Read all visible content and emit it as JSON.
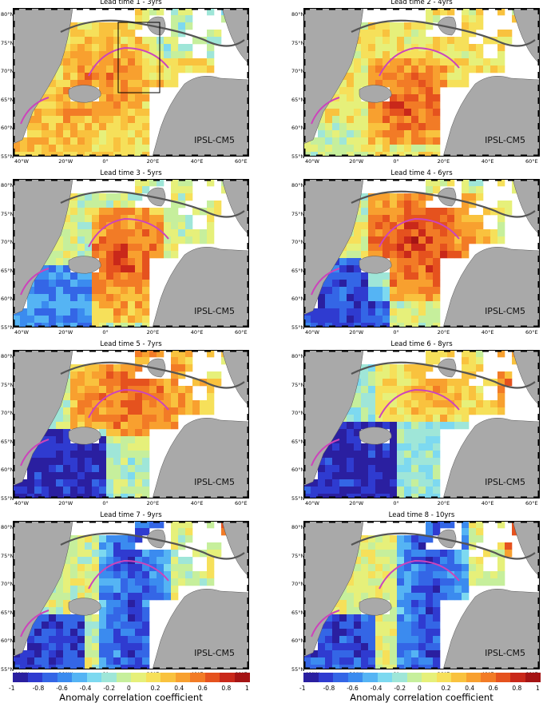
{
  "chart_data": {
    "type": "heatmap",
    "value_label": "Anomaly correlation coefficient",
    "colorbar": {
      "range": [
        -1,
        1
      ],
      "ticks": [
        "-1",
        "-0.8",
        "-0.6",
        "-0.4",
        "-0.2",
        "0",
        "0.2",
        "0.4",
        "0.6",
        "0.8",
        "1"
      ],
      "colors": [
        "#2a1fa0",
        "#2f3bd0",
        "#3466e6",
        "#3b8bef",
        "#55b4f4",
        "#7dd9f0",
        "#9fe6d8",
        "#c6ef9c",
        "#e6f07a",
        "#f6e05a",
        "#f9c23e",
        "#f8a02f",
        "#f27b26",
        "#e5521e",
        "#c9281a",
        "#a51414"
      ]
    },
    "axes": {
      "lat_ticks": [
        "55°N",
        "60°N",
        "65°N",
        "70°N",
        "75°N",
        "80°N"
      ],
      "lon_ticks": [
        "40°W",
        "20°W",
        "0°",
        "20°E",
        "40°E",
        "60°E"
      ],
      "lat_range": [
        55,
        80
      ],
      "lon_range": [
        -40,
        60
      ]
    },
    "panels": [
      {
        "title": "Lead time 1 - 3yrs",
        "model": "IPSL-CM5",
        "pattern": "lead1"
      },
      {
        "title": "Lead time 2 - 4yrs",
        "model": "IPSL-CM5",
        "pattern": "lead2"
      },
      {
        "title": "Lead time 3 - 5yrs",
        "model": "IPSL-CM5",
        "pattern": "lead3"
      },
      {
        "title": "Lead time 4 - 6yrs",
        "model": "IPSL-CM5",
        "pattern": "lead4"
      },
      {
        "title": "Lead time 5 - 7yrs",
        "model": "IPSL-CM5",
        "pattern": "lead5"
      },
      {
        "title": "Lead time 6 - 8yrs",
        "model": "IPSL-CM5",
        "pattern": "lead6"
      },
      {
        "title": "Lead time 7 - 9yrs",
        "model": "IPSL-CM5",
        "pattern": "lead7"
      },
      {
        "title": "Lead time 8 - 10yrs",
        "model": "IPSL-CM5",
        "pattern": "lead8"
      }
    ]
  }
}
